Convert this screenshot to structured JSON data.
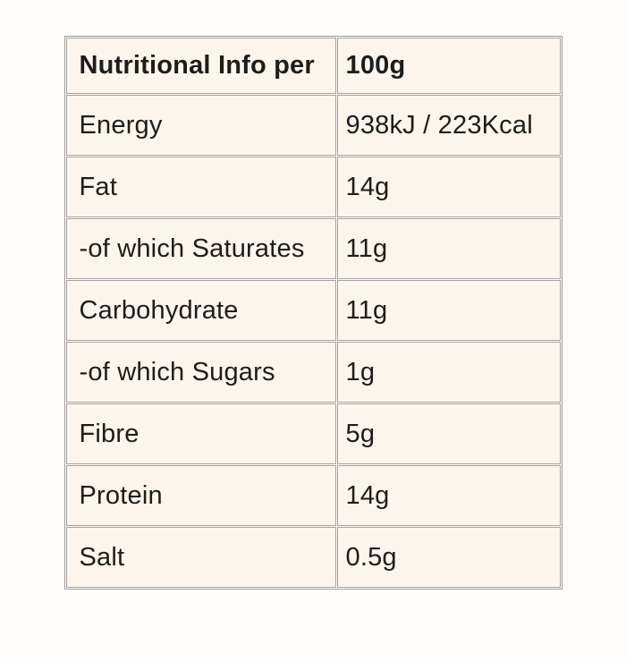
{
  "table": {
    "header": {
      "label": "Nutritional Info per",
      "value": "100g"
    },
    "rows": [
      {
        "label": "Energy",
        "value": "938kJ / 223Kcal"
      },
      {
        "label": "Fat",
        "value": "14g"
      },
      {
        "label": "-of which Saturates",
        "value": "11g"
      },
      {
        "label": "Carbohydrate",
        "value": "11g"
      },
      {
        "label": "-of which Sugars",
        "value": "1g"
      },
      {
        "label": "Fibre",
        "value": "5g"
      },
      {
        "label": "Protein",
        "value": "14g"
      },
      {
        "label": "Salt",
        "value": "0.5g"
      }
    ],
    "colors": {
      "cell_background": "#fcf5ee",
      "border": "#9c9c9c",
      "text": "#1d1d1b",
      "page_background": "#fffdfa"
    }
  }
}
